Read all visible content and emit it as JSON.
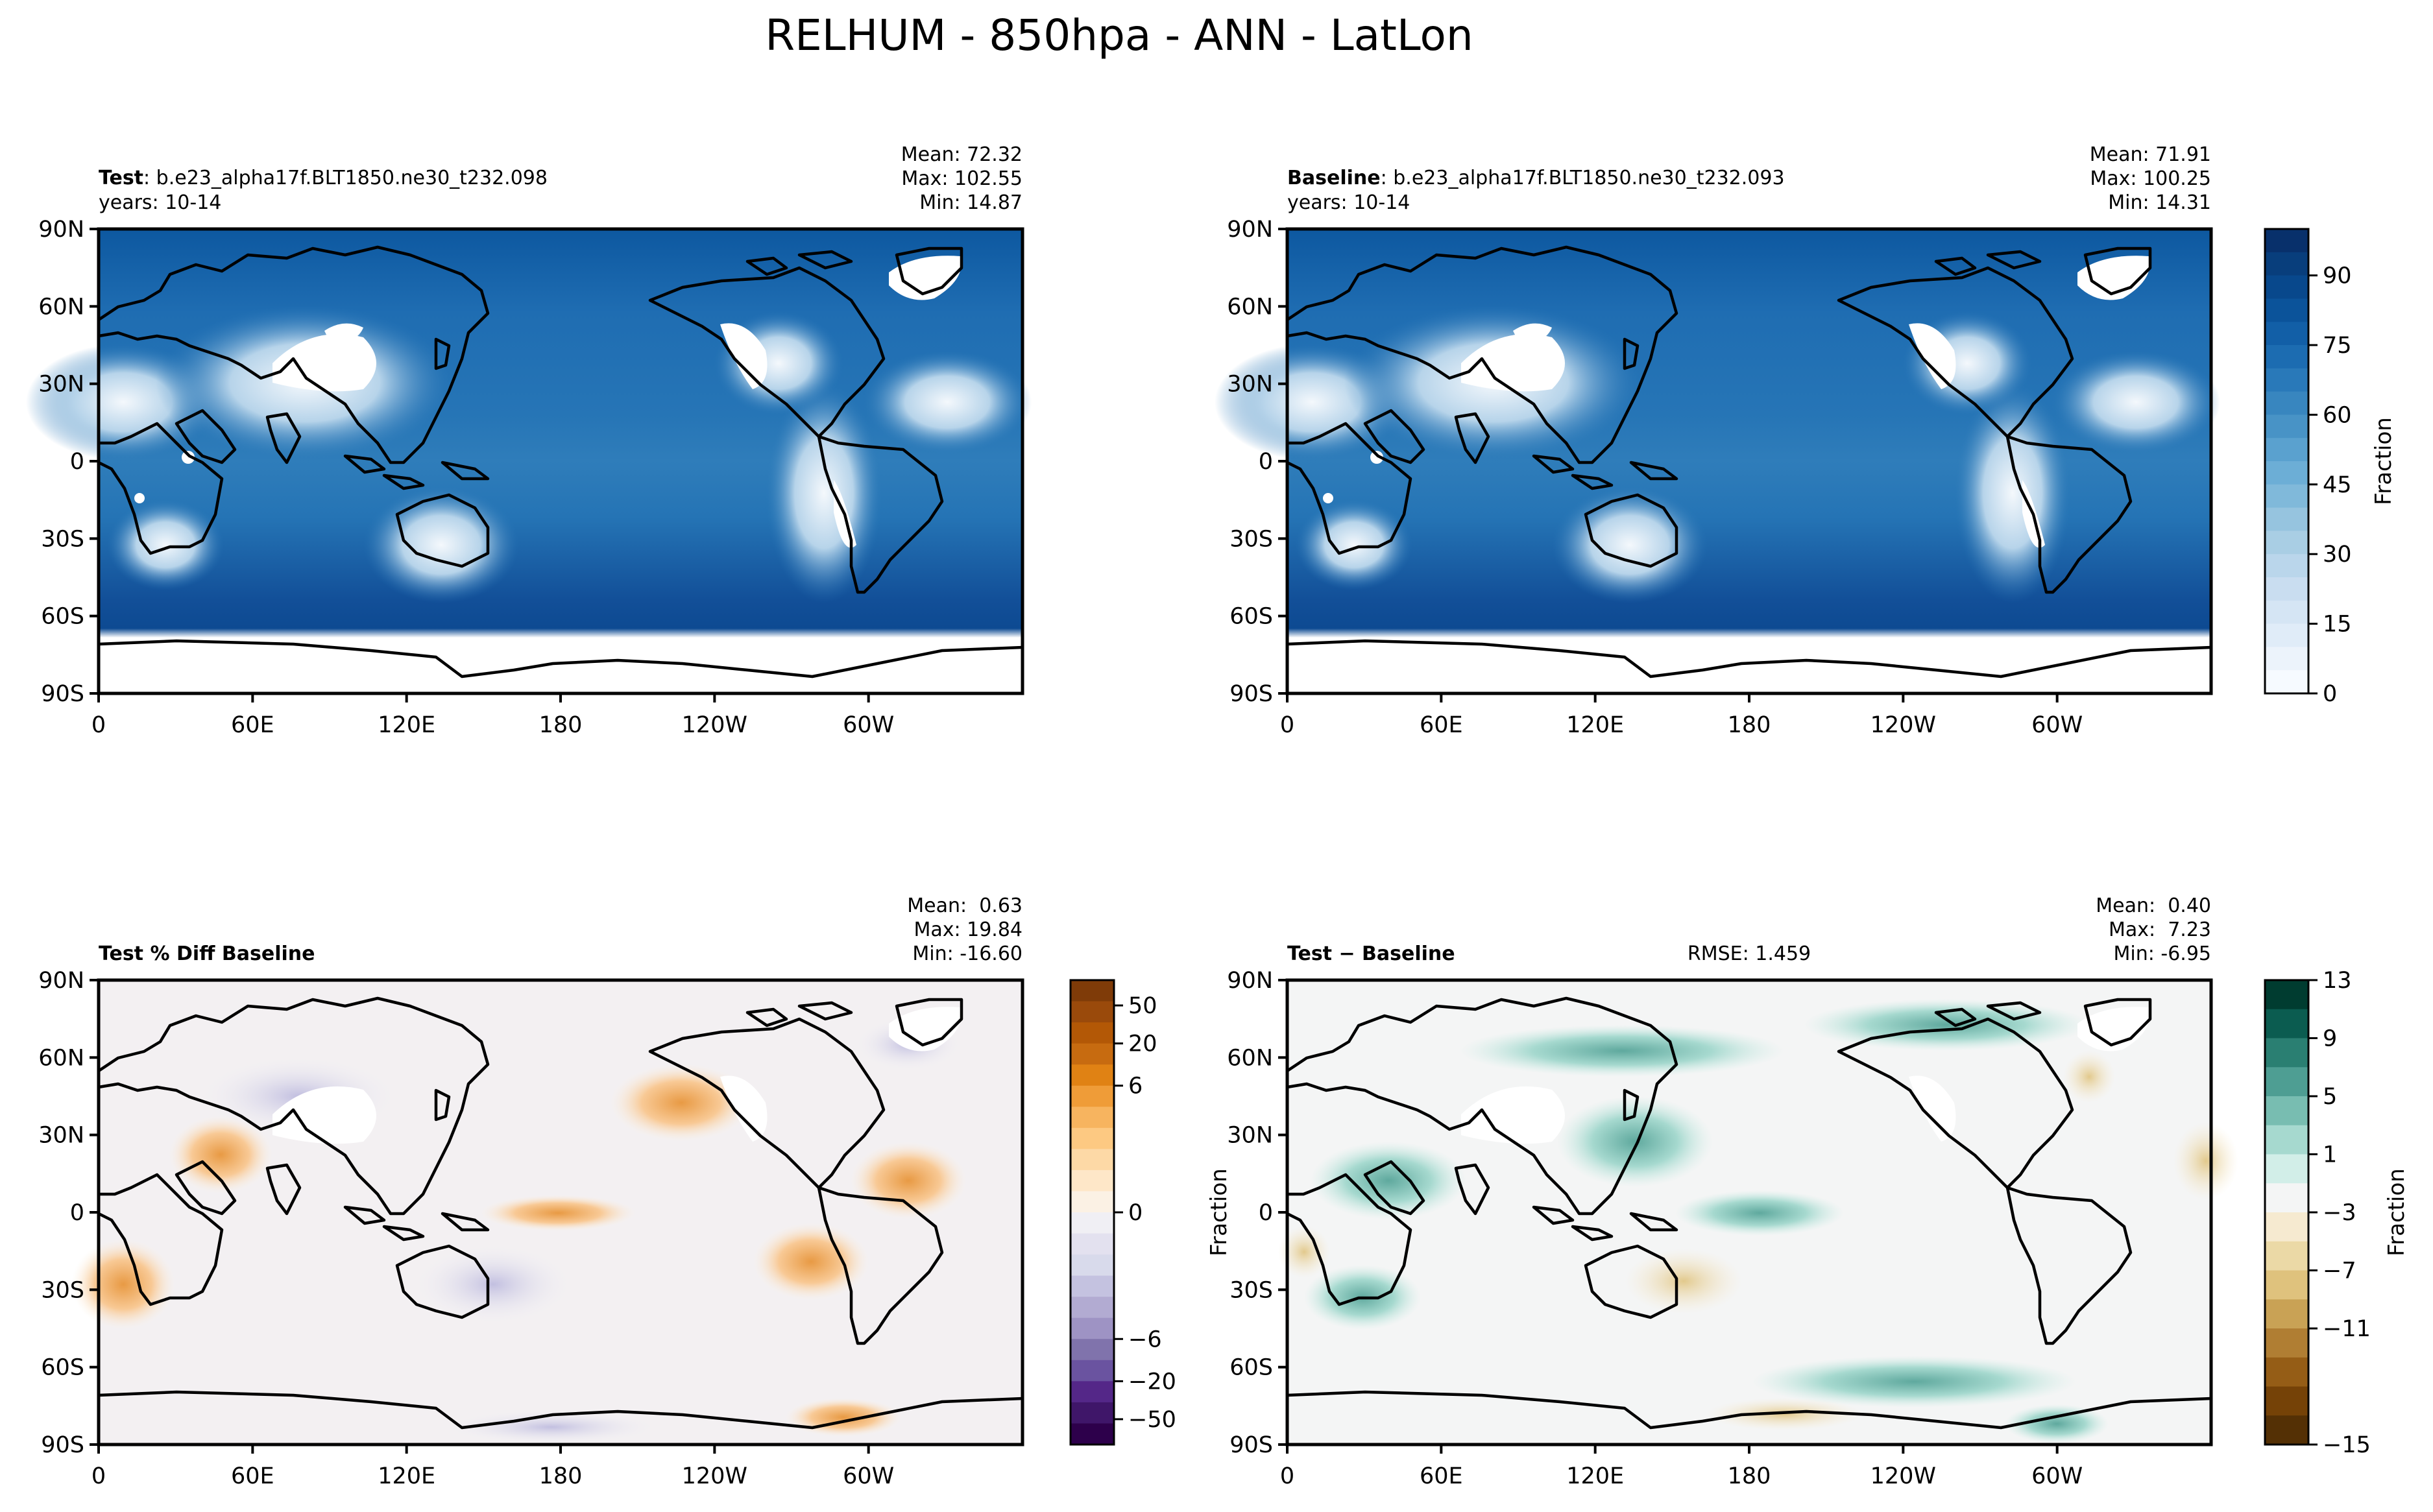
{
  "suptitle": "RELHUM - 850hpa - ANN - LatLon",
  "lat_ticks": [
    "90N",
    "60N",
    "30N",
    "0",
    "30S",
    "60S",
    "90S"
  ],
  "lon_ticks": [
    "0",
    "60E",
    "120E",
    "180",
    "120W",
    "60W"
  ],
  "panels": {
    "test": {
      "title_bold": "Test",
      "title_rest": ": b.e23_alpha17f.BLT1850.ne30_t232.098",
      "years": "years: 10-14",
      "mean": "Mean: 72.32",
      "max": "Max: 102.55",
      "min": "Min: 14.87"
    },
    "baseline": {
      "title_bold": "Baseline",
      "title_rest": ": b.e23_alpha17f.BLT1850.ne30_t232.093",
      "years": "years: 10-14",
      "mean": "Mean: 71.91",
      "max": "Max: 100.25",
      "min": "Min: 14.31"
    },
    "pctdiff": {
      "title_bold": "Test % Diff Baseline",
      "mean": "Mean:  0.63",
      "max": "Max: 19.84",
      "min": "Min: -16.60"
    },
    "diff": {
      "title_bold": "Test − Baseline",
      "rmse": "RMSE: 1.459",
      "mean": "Mean:  0.40",
      "max": "Max:  7.23",
      "min": "Min: -6.95",
      "ylabel": "Fraction"
    }
  },
  "colorbars": {
    "relhum": {
      "label": "Fraction",
      "ticks": [
        "0",
        "15",
        "30",
        "45",
        "60",
        "75",
        "90"
      ],
      "tick_values": [
        0,
        15,
        30,
        45,
        60,
        75,
        90
      ],
      "levels": [
        0,
        5,
        10,
        15,
        20,
        25,
        30,
        35,
        40,
        45,
        50,
        55,
        60,
        65,
        70,
        75,
        80,
        85,
        90,
        95,
        100
      ],
      "colors": [
        "#f6faff",
        "#ecf3fb",
        "#e0ecf8",
        "#d5e5f4",
        "#c9ddf0",
        "#bad6eb",
        "#a9cee4",
        "#96c4df",
        "#80b9da",
        "#6caed6",
        "#5aa1cf",
        "#4893c6",
        "#3886bf",
        "#2979b9",
        "#1c6cb1",
        "#125fa7",
        "#0b539a",
        "#08488c",
        "#083e7c",
        "#08306b"
      ]
    },
    "pctdiff": {
      "ticks": [
        "50",
        "20",
        "6",
        "0",
        "−6",
        "−20",
        "−50"
      ],
      "colors": [
        "#7f3b08",
        "#9a4a0b",
        "#b35806",
        "#c76b10",
        "#e08214",
        "#ef9c38",
        "#f7b45f",
        "#fdc982",
        "#fdd9a6",
        "#fee7c8",
        "#fbf1e4",
        "#f0eff4",
        "#e3e1ef",
        "#d8daeb",
        "#c4c2e0",
        "#b2abd2",
        "#9e93c4",
        "#8073ac",
        "#6a53a0",
        "#542788",
        "#3f1669",
        "#2d004b"
      ]
    },
    "diff": {
      "label": "Fraction",
      "ticks": [
        "13",
        "9",
        "5",
        "1",
        "−3",
        "−7",
        "−11",
        "−15"
      ],
      "colors": [
        "#003c30",
        "#0b5c50",
        "#2a7f72",
        "#4e9e93",
        "#78bdb1",
        "#a6d9cf",
        "#d2eee8",
        "#f4f5f5",
        "#f6ead0",
        "#ebd9a6",
        "#dfc27d",
        "#c9a255",
        "#b07e33",
        "#955d16",
        "#754207",
        "#543005"
      ]
    }
  }
}
